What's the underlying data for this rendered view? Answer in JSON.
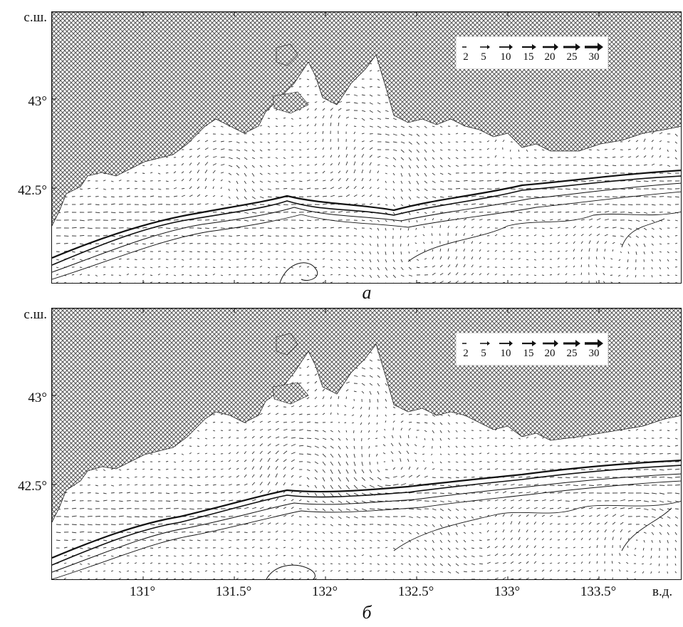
{
  "panels": [
    {
      "id": "a",
      "label": "а"
    },
    {
      "id": "b",
      "label": "б"
    }
  ],
  "axes": {
    "lat_unit": "с.ш.",
    "lon_unit": "в.д.",
    "lat_ticks": [
      "43°",
      "42.5°"
    ],
    "lon_ticks": [
      "131°",
      "131.5°",
      "132°",
      "132.5°",
      "133°",
      "133.5°"
    ]
  },
  "legend": {
    "values": [
      "2",
      "5",
      "10",
      "15",
      "20",
      "25",
      "30"
    ]
  },
  "colors": {
    "land_hatch": "#555555",
    "arrow": "#333333",
    "contour": "#111111",
    "background": "#ffffff"
  }
}
